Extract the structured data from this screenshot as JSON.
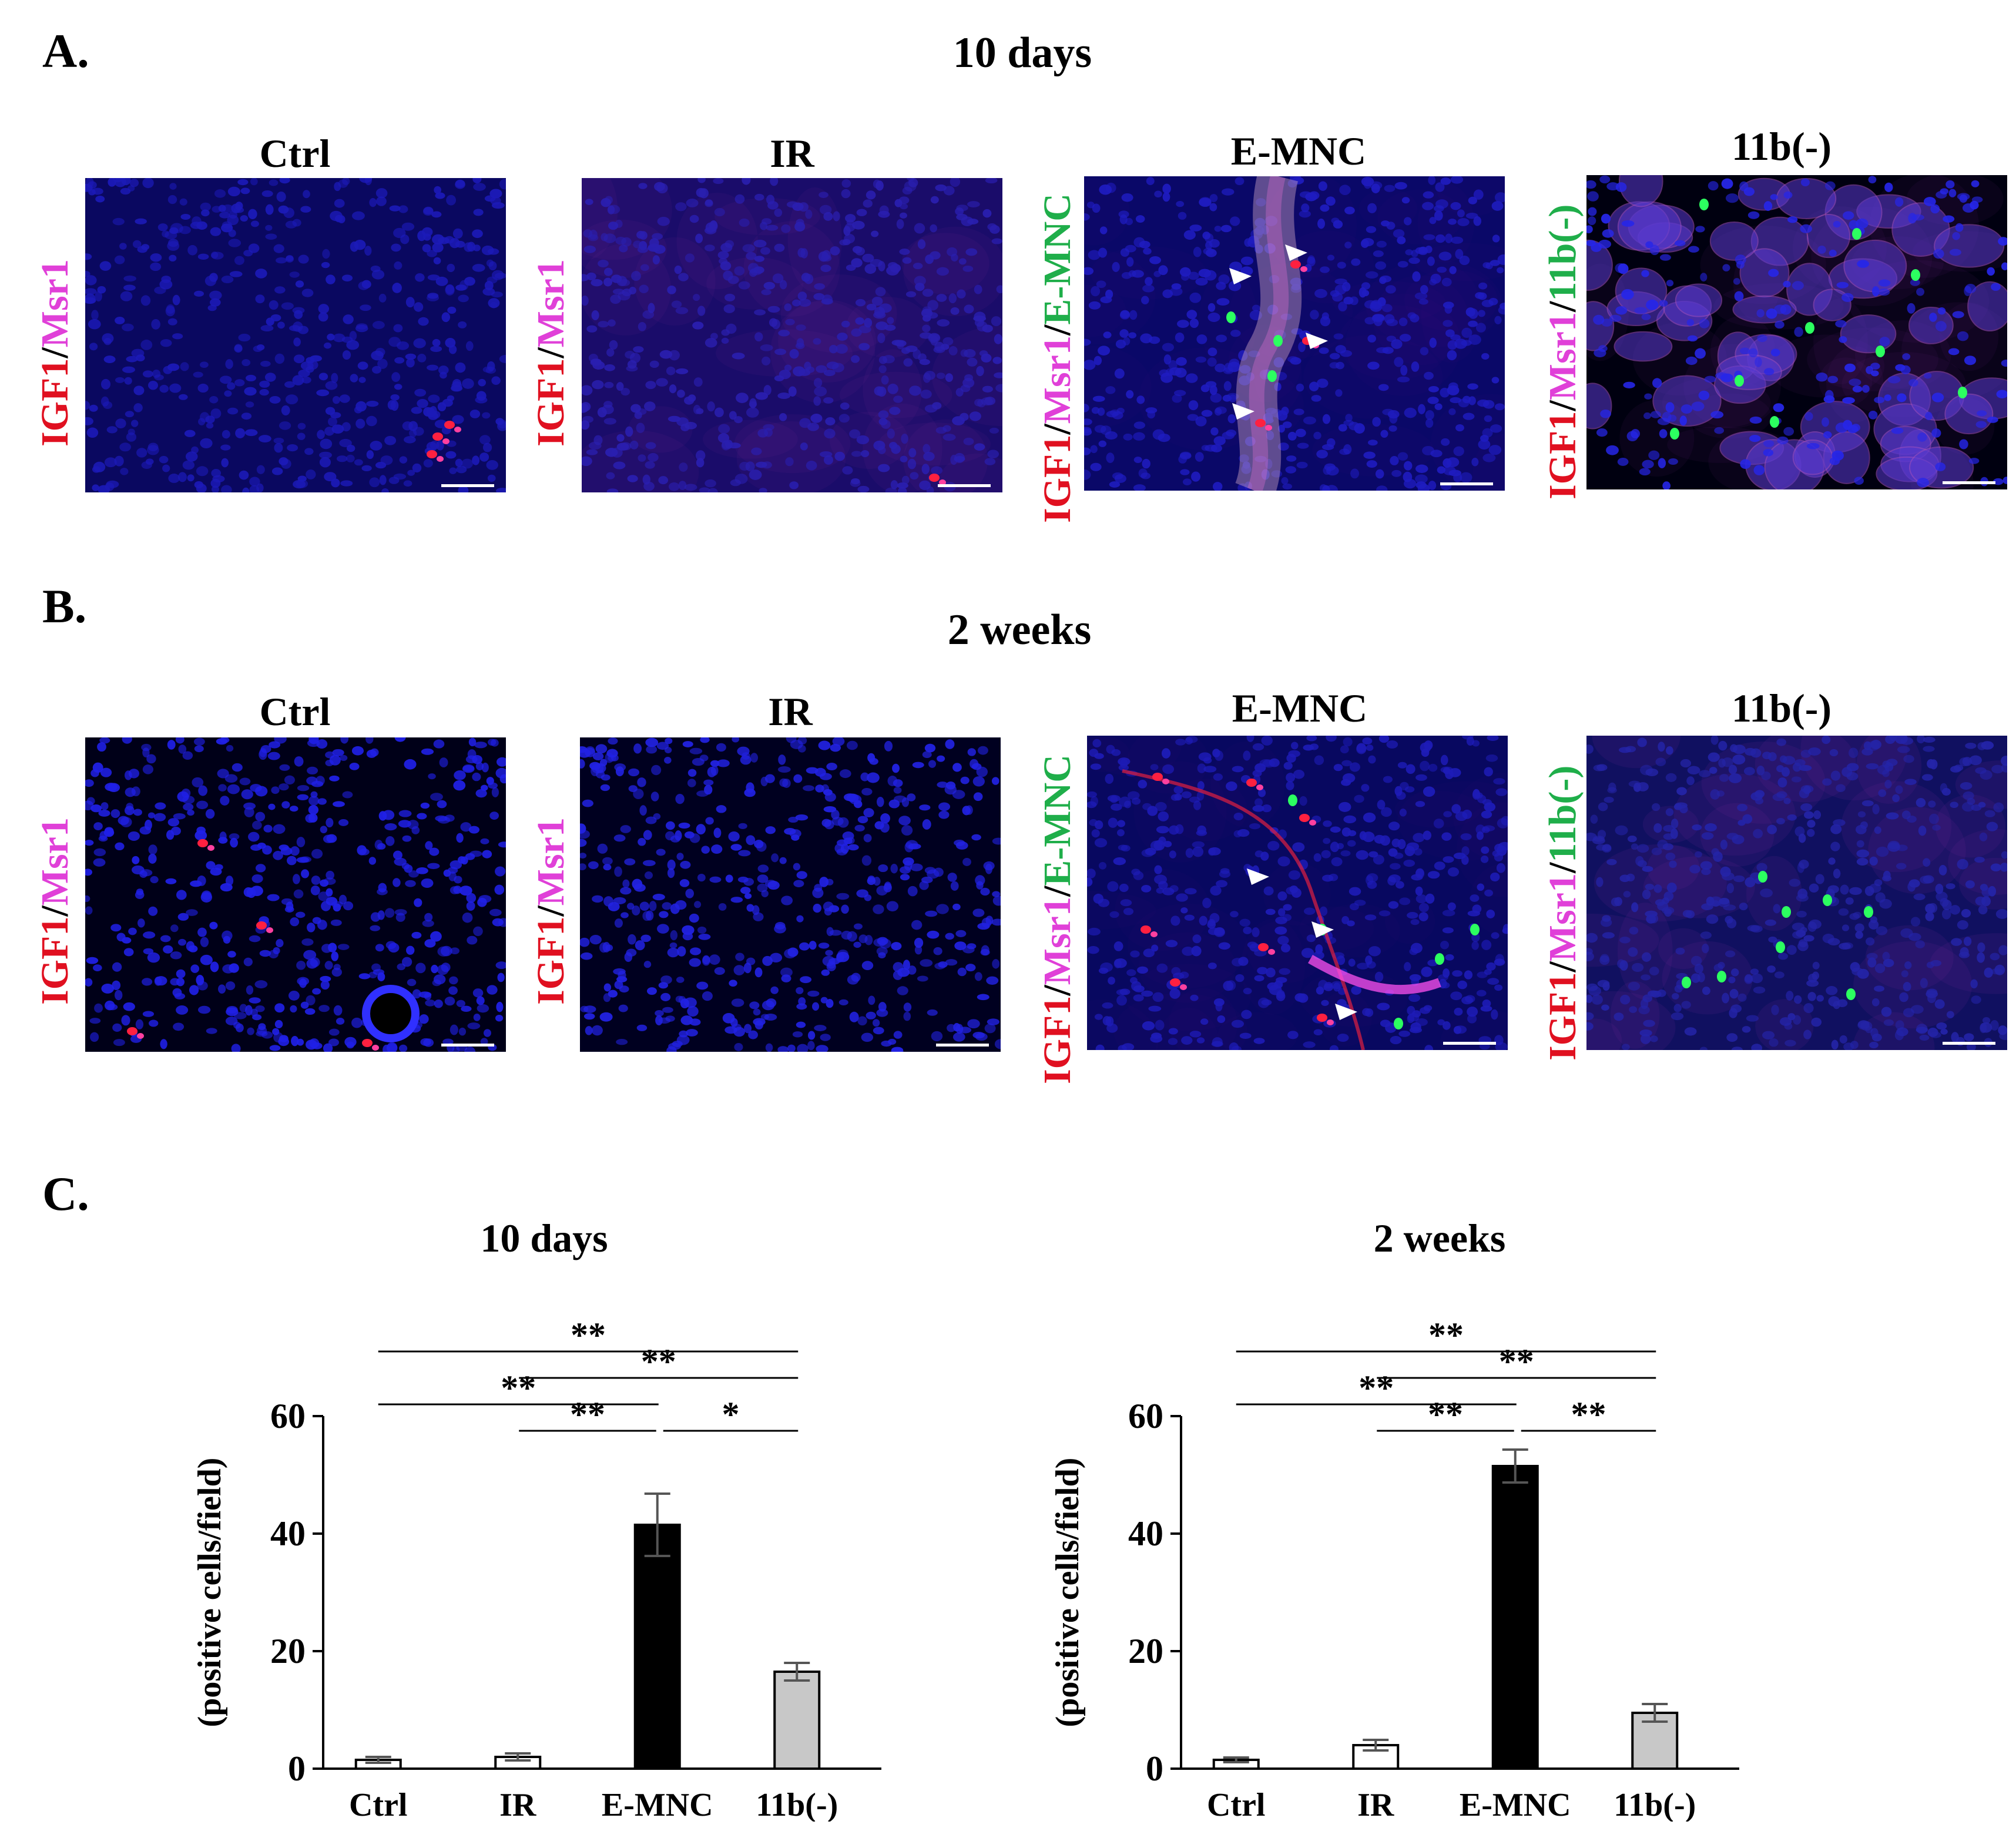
{
  "panels": {
    "A": {
      "letter": "A.",
      "title": "10 days"
    },
    "B": {
      "letter": "B.",
      "title": "2 weeks"
    },
    "C": {
      "letter": "C."
    }
  },
  "columns": [
    {
      "title": "Ctrl",
      "label_parts": [
        {
          "text": "IGF1",
          "color": "red"
        },
        {
          "text": "/",
          "color": "black"
        },
        {
          "text": "Msr1",
          "color": "magenta"
        }
      ]
    },
    {
      "title": "IR",
      "label_parts": [
        {
          "text": "IGF1",
          "color": "red"
        },
        {
          "text": "/",
          "color": "black"
        },
        {
          "text": "Msr1",
          "color": "magenta"
        }
      ]
    },
    {
      "title": "E-MNC",
      "label_parts": [
        {
          "text": "IGF1",
          "color": "red"
        },
        {
          "text": "/",
          "color": "black"
        },
        {
          "text": "Msr1",
          "color": "magenta"
        },
        {
          "text": "/",
          "color": "black"
        },
        {
          "text": "E-MNC",
          "color": "green"
        }
      ]
    },
    {
      "title": "11b(-)",
      "label_parts": [
        {
          "text": "IGF1",
          "color": "red"
        },
        {
          "text": "/",
          "color": "black"
        },
        {
          "text": "Msr1",
          "color": "magenta"
        },
        {
          "text": "/",
          "color": "black"
        },
        {
          "text": "11b(-)",
          "color": "green"
        }
      ]
    }
  ],
  "colors": {
    "red": "#e01020",
    "magenta": "#e040d8",
    "green": "#1fae4a",
    "black": "#000000",
    "nuclei_blue": "#1a1ae0",
    "bg_blue": "#0b0a6e",
    "gray_bar": "#c8c8c8"
  },
  "chart_data": [
    {
      "type": "bar",
      "title": "10 days",
      "ylabel": "(positive cells/field)",
      "categories": [
        "Ctrl",
        "IR",
        "E-MNC",
        "11b(-)"
      ],
      "values": [
        1.5,
        2,
        41.5,
        16.5
      ],
      "errors": [
        0.5,
        0.6,
        5.3,
        1.5
      ],
      "bar_colors": [
        "#ffffff",
        "#ffffff",
        "#000000",
        "#c8c8c8"
      ],
      "ylim": [
        0,
        60
      ],
      "yticks": [
        0,
        20,
        40,
        60
      ],
      "significance": [
        {
          "from": 0,
          "to": 3,
          "label": "**"
        },
        {
          "from": 1,
          "to": 3,
          "label": "**"
        },
        {
          "from": 0,
          "to": 2,
          "label": "**"
        },
        {
          "from": 1,
          "to": 2,
          "label": "**"
        },
        {
          "from": 2,
          "to": 3,
          "label": "*"
        }
      ]
    },
    {
      "type": "bar",
      "title": "2 weeks",
      "ylabel": "(positive cells/field)",
      "categories": [
        "Ctrl",
        "IR",
        "E-MNC",
        "11b(-)"
      ],
      "values": [
        1.5,
        4,
        51.5,
        9.5
      ],
      "errors": [
        0.4,
        0.9,
        2.8,
        1.5
      ],
      "bar_colors": [
        "#ffffff",
        "#ffffff",
        "#000000",
        "#c8c8c8"
      ],
      "ylim": [
        0,
        60
      ],
      "yticks": [
        0,
        20,
        40,
        60
      ],
      "significance": [
        {
          "from": 0,
          "to": 3,
          "label": "**"
        },
        {
          "from": 1,
          "to": 3,
          "label": "**"
        },
        {
          "from": 0,
          "to": 2,
          "label": "**"
        },
        {
          "from": 1,
          "to": 2,
          "label": "**"
        },
        {
          "from": 2,
          "to": 3,
          "label": "**"
        }
      ]
    }
  ]
}
